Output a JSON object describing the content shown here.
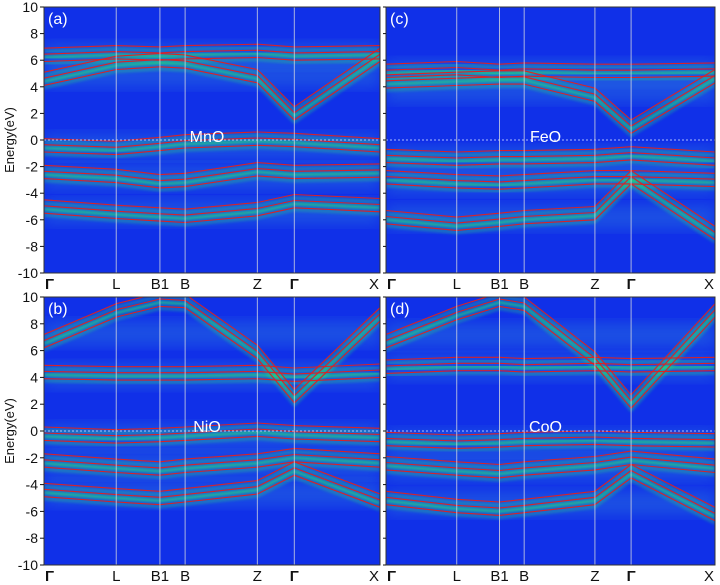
{
  "figure": {
    "ylabel": "Energy(eV)",
    "yticks": [
      "10",
      "8",
      "6",
      "4",
      "2",
      "0",
      "-2",
      "-4",
      "-6",
      "-8",
      "-10"
    ],
    "kpoint_labels": [
      "Γ",
      "L",
      "B1",
      "B",
      "Z",
      "Γ",
      "X"
    ]
  },
  "chart_data": [
    {
      "type": "line",
      "panel": "(a)",
      "material": "MnO",
      "ylabel": "Energy(eV)",
      "ylim": [
        -10,
        10
      ],
      "x": [
        "Γ",
        "L",
        "B1",
        "B",
        "Z",
        "Γ",
        "X"
      ],
      "fermi_level": 0,
      "conduction_band_min_at_Gamma": 1.8,
      "bands_eV_at_kpoints": {
        "conduction_low": [
          4.4,
          5.6,
          5.8,
          5.7,
          4.6,
          1.8,
          6.2
        ],
        "d_manifold_upper": [
          6.2,
          6.4,
          6.3,
          6.4,
          6.5,
          6.3,
          6.4
        ],
        "valence_top": [
          -0.6,
          -0.8,
          -0.5,
          -0.3,
          -0.1,
          -0.2,
          -0.6
        ],
        "valence_mid": [
          -2.6,
          -2.9,
          -3.3,
          -3.2,
          -2.4,
          -2.6,
          -2.5
        ],
        "valence_low": [
          -5.2,
          -5.6,
          -5.8,
          -5.9,
          -5.4,
          -4.8,
          -5.1
        ]
      },
      "colors": {
        "dmft_spectral": "#22e07a",
        "dft_bands": "#e22020",
        "background": "#1030e8"
      }
    },
    {
      "type": "line",
      "panel": "(c)",
      "material": "FeO",
      "ylabel": "",
      "ylim": [
        -10,
        10
      ],
      "x": [
        "Γ",
        "L",
        "B1",
        "B",
        "Z",
        "Γ",
        "X"
      ],
      "fermi_level": 0,
      "bands_eV_at_kpoints": {
        "conduction_low": [
          4.2,
          4.4,
          4.5,
          4.5,
          3.2,
          0.8,
          4.6
        ],
        "d_manifold_upper": [
          5.0,
          5.2,
          5.0,
          5.1,
          5.0,
          5.0,
          5.1
        ],
        "valence_top": [
          -1.4,
          -1.6,
          -1.5,
          -1.5,
          -1.4,
          -1.2,
          -1.6
        ],
        "valence_mid": [
          -3.0,
          -3.3,
          -3.4,
          -3.3,
          -3.0,
          -3.0,
          -3.2
        ],
        "valence_low": [
          -6.0,
          -6.5,
          -6.2,
          -6.0,
          -5.7,
          -3.0,
          -7.2
        ]
      },
      "colors": {
        "dmft_spectral": "#22e07a",
        "dft_bands": "#e22020",
        "background": "#1030e8"
      }
    },
    {
      "type": "line",
      "panel": "(b)",
      "material": "NiO",
      "ylabel": "Energy(eV)",
      "ylim": [
        -10,
        10
      ],
      "x": [
        "Γ",
        "L",
        "B1",
        "B",
        "Z",
        "Γ",
        "X"
      ],
      "fermi_level": 0,
      "bands_eV_at_kpoints": {
        "upper_hubbard": [
          4.2,
          4.1,
          4.1,
          4.1,
          4.2,
          4.0,
          4.3
        ],
        "conduction_low": [
          6.5,
          8.8,
          9.6,
          9.5,
          5.7,
          2.4,
          8.5
        ],
        "valence_top": [
          -0.4,
          -0.6,
          -0.5,
          -0.4,
          -0.1,
          -0.3,
          -0.5
        ],
        "valence_mid": [
          -2.4,
          -2.8,
          -3.0,
          -2.8,
          -2.4,
          -2.0,
          -2.4
        ],
        "valence_low": [
          -4.6,
          -5.0,
          -5.2,
          -5.0,
          -4.4,
          -3.0,
          -5.4
        ]
      },
      "colors": {
        "dmft_spectral": "#22e07a",
        "dft_bands": "#e22020",
        "background": "#1030e8"
      }
    },
    {
      "type": "line",
      "panel": "(d)",
      "material": "CoO",
      "ylabel": "",
      "ylim": [
        -10,
        10
      ],
      "x": [
        "Γ",
        "L",
        "B1",
        "B",
        "Z",
        "Γ",
        "X"
      ],
      "fermi_level": 0,
      "bands_eV_at_kpoints": {
        "upper_hubbard": [
          4.6,
          4.8,
          4.8,
          4.7,
          4.8,
          4.7,
          4.8
        ],
        "conduction_low": [
          6.5,
          8.6,
          9.6,
          9.3,
          5.2,
          2.0,
          8.8
        ],
        "valence_top": [
          -0.8,
          -1.0,
          -0.9,
          -0.8,
          -0.7,
          -0.8,
          -0.9
        ],
        "valence_mid": [
          -2.6,
          -3.0,
          -3.2,
          -3.0,
          -2.6,
          -2.2,
          -2.8
        ],
        "valence_low": [
          -5.2,
          -5.8,
          -6.0,
          -5.8,
          -5.2,
          -3.2,
          -6.4
        ]
      },
      "colors": {
        "dmft_spectral": "#22e07a",
        "dft_bands": "#e22020",
        "background": "#1030e8"
      }
    }
  ]
}
